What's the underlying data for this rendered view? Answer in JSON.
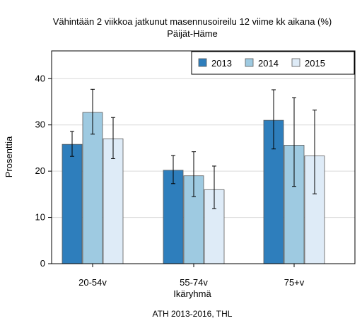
{
  "chart_data": {
    "type": "bar",
    "title": "Vähintään 2 viikkoa jatkunut masennusoireilu 12 viime kk aikana (%)",
    "subtitle": "Päijät-Häme",
    "xlabel": "Ikäryhmä",
    "ylabel": "Prosenttia",
    "caption": "ATH 2013-2016, THL",
    "categories": [
      "20-54v",
      "55-74v",
      "75+v"
    ],
    "ylim": [
      0,
      46
    ],
    "yticks": [
      0,
      10,
      20,
      30,
      40
    ],
    "grid": true,
    "legend_position": "top-right",
    "series": [
      {
        "name": "2013",
        "color": "#2e7ebc",
        "values": [
          25.8,
          20.2,
          31.0
        ],
        "err_low": [
          23.2,
          17.3,
          24.8
        ],
        "err_high": [
          28.6,
          23.4,
          37.6
        ]
      },
      {
        "name": "2014",
        "color": "#9ecae1",
        "values": [
          32.7,
          19.0,
          25.6
        ],
        "err_low": [
          28.0,
          14.5,
          16.7
        ],
        "err_high": [
          37.7,
          24.2,
          35.9
        ]
      },
      {
        "name": "2015",
        "color": "#deebf7",
        "values": [
          27.0,
          16.0,
          23.3
        ],
        "err_low": [
          22.7,
          11.9,
          15.1
        ],
        "err_high": [
          31.6,
          21.1,
          33.2
        ]
      }
    ]
  }
}
